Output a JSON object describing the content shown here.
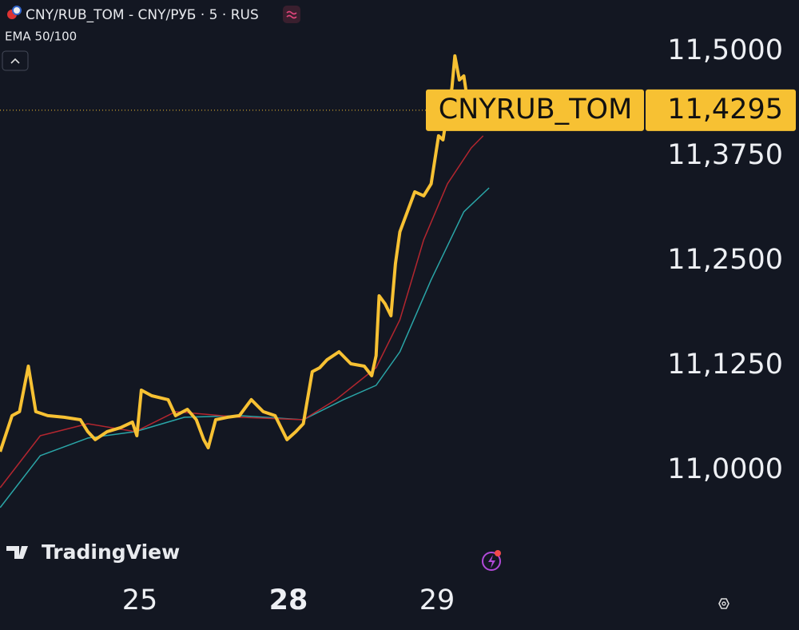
{
  "chart_data": {
    "type": "line",
    "title": "CNY/RUB_TOM - CNY/РУБ · 5 · RUS",
    "indicator_label": "EMA 50/100",
    "watermark": "TradingView",
    "last_value_label": "11,4295",
    "background": "#131722",
    "xlim": [
      -0.941,
      3.414
    ],
    "xticks": [
      {
        "value": 0,
        "label": "25"
      },
      {
        "value": 1,
        "label": "28",
        "bold": true
      },
      {
        "value": 2,
        "label": "29"
      }
    ],
    "ylim": [
      10.874,
      11.561
    ],
    "yticks": [
      {
        "value": 11.0,
        "label": "11,0000"
      },
      {
        "value": 11.125,
        "label": "11,1250"
      },
      {
        "value": 11.25,
        "label": "11,2500"
      },
      {
        "value": 11.375,
        "label": "11,3750"
      },
      {
        "value": 11.5,
        "label": "11,5000"
      }
    ],
    "series": [
      {
        "name": "CNYRUB_TOM",
        "color": "#f7c133",
        "width": 4,
        "x": [
          -0.94,
          -0.86,
          -0.81,
          -0.75,
          -0.7,
          -0.62,
          -0.51,
          -0.4,
          -0.35,
          -0.3,
          -0.22,
          -0.13,
          -0.05,
          -0.02,
          0.01,
          0.08,
          0.19,
          0.24,
          0.32,
          0.38,
          0.43,
          0.46,
          0.51,
          0.59,
          0.67,
          0.75,
          0.83,
          0.91,
          0.99,
          1.05,
          1.1,
          1.16,
          1.21,
          1.26,
          1.34,
          1.42,
          1.51,
          1.56,
          1.59,
          1.61,
          1.65,
          1.69,
          1.72,
          1.75,
          1.8,
          1.85,
          1.91,
          1.96,
          2.01,
          2.04,
          2.07,
          2.1,
          2.12,
          2.15,
          2.18,
          2.2,
          2.23,
          2.26
        ],
        "values": [
          11.0219,
          11.0649,
          11.0697,
          11.124,
          11.0697,
          11.0649,
          11.063,
          11.0601,
          11.0458,
          11.0363,
          11.0458,
          11.0506,
          11.0573,
          11.041,
          11.0954,
          11.0887,
          11.084,
          11.0649,
          11.0725,
          11.0601,
          11.0363,
          11.0267,
          11.0601,
          11.063,
          11.0649,
          11.084,
          11.0697,
          11.0649,
          11.0363,
          11.0458,
          11.0553,
          11.1174,
          11.1221,
          11.1317,
          11.1412,
          11.1269,
          11.124,
          11.1126,
          11.1365,
          11.208,
          11.1985,
          11.1842,
          11.2462,
          11.2844,
          11.3082,
          11.3321,
          11.3273,
          11.3416,
          11.3989,
          11.3941,
          11.4275,
          11.4561,
          11.4943,
          11.4656,
          11.4704,
          11.4466,
          11.437,
          11.4295
        ]
      },
      {
        "color": "#b3262f",
        "width": 1.5,
        "x": [
          -0.94,
          -0.67,
          -0.35,
          -0.03,
          0.24,
          0.67,
          1.1,
          1.32,
          1.59,
          1.75,
          1.91,
          2.07,
          2.23,
          2.31
        ],
        "values": [
          10.979,
          11.041,
          11.0553,
          11.0458,
          11.0697,
          11.063,
          11.0601,
          11.084,
          11.1221,
          11.1794,
          11.2748,
          11.3416,
          11.3845,
          11.3989
        ]
      },
      {
        "color": "#2aa6a8",
        "width": 1.5,
        "x": [
          -0.94,
          -0.67,
          -0.35,
          -0.03,
          0.3,
          0.67,
          1.1,
          1.37,
          1.59,
          1.75,
          1.96,
          2.18,
          2.35
        ],
        "values": [
          10.9552,
          11.0172,
          11.0382,
          11.0458,
          11.063,
          11.0649,
          11.0601,
          11.084,
          11.1011,
          11.1412,
          11.2271,
          11.3082,
          11.3368
        ]
      }
    ]
  }
}
